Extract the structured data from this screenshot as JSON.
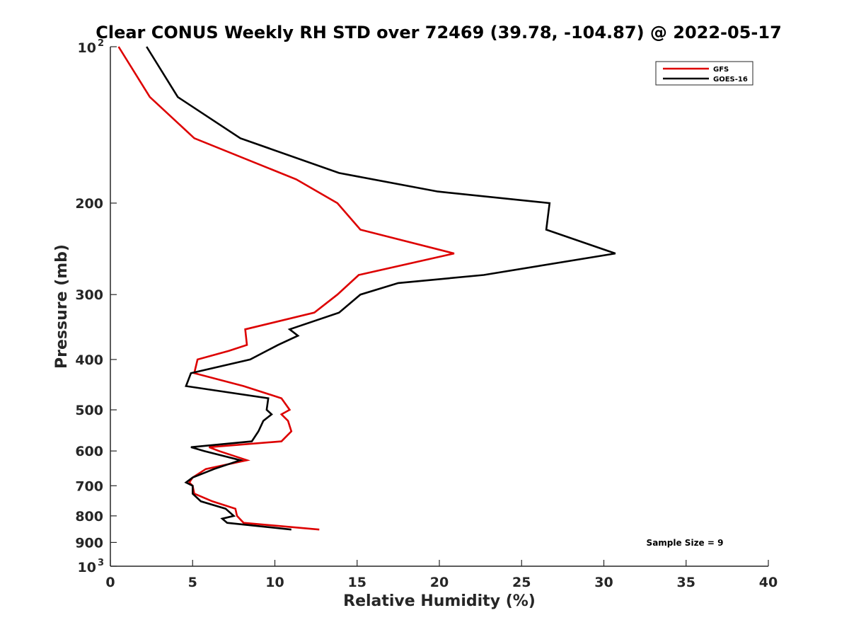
{
  "chart_data": {
    "type": "line",
    "title": "Clear CONUS Weekly RH STD over 72469 (39.78, -104.87) @ 2022-05-17",
    "xlabel": "Relative Humidity (%)",
    "ylabel": "Pressure (mb)",
    "xlim": [
      0,
      40
    ],
    "ylim": [
      100,
      1000
    ],
    "y_scale": "log",
    "y_reversed": true,
    "x_ticks": [
      "0",
      "5",
      "10",
      "15",
      "20",
      "25",
      "30",
      "35",
      "40"
    ],
    "y_ticks": [
      {
        "value": 100,
        "base": "10",
        "exp": "2"
      },
      {
        "value": 200,
        "label": "200"
      },
      {
        "value": 300,
        "label": "300"
      },
      {
        "value": 400,
        "label": "400"
      },
      {
        "value": 500,
        "label": "500"
      },
      {
        "value": 600,
        "label": "600"
      },
      {
        "value": 700,
        "label": "700"
      },
      {
        "value": 800,
        "label": "800"
      },
      {
        "value": 900,
        "label": "900"
      },
      {
        "value": 1000,
        "base": "10",
        "exp": "3"
      }
    ],
    "grid": false,
    "legend_position": "top-right",
    "annotation": "Sample Size = 9",
    "series": [
      {
        "name": "GFS",
        "color": "#dd0000",
        "points": [
          [
            0.5,
            100
          ],
          [
            2.4,
            125
          ],
          [
            5.1,
            150
          ],
          [
            11.3,
            180
          ],
          [
            13.8,
            200
          ],
          [
            15.2,
            225
          ],
          [
            20.9,
            250
          ],
          [
            15.1,
            275
          ],
          [
            13.8,
            300
          ],
          [
            12.4,
            325
          ],
          [
            8.2,
            350
          ],
          [
            8.3,
            375
          ],
          [
            7.2,
            385
          ],
          [
            5.3,
            400
          ],
          [
            5.1,
            425
          ],
          [
            8.1,
            450
          ],
          [
            10.4,
            475
          ],
          [
            10.9,
            500
          ],
          [
            10.4,
            510
          ],
          [
            10.8,
            525
          ],
          [
            11.0,
            550
          ],
          [
            10.4,
            575
          ],
          [
            6.0,
            590
          ],
          [
            6.6,
            600
          ],
          [
            8.3,
            625
          ],
          [
            5.8,
            650
          ],
          [
            5.0,
            675
          ],
          [
            4.8,
            690
          ],
          [
            5.0,
            700
          ],
          [
            5.1,
            725
          ],
          [
            6.2,
            750
          ],
          [
            7.6,
            775
          ],
          [
            7.7,
            800
          ],
          [
            8.1,
            825
          ],
          [
            12.7,
            850
          ]
        ]
      },
      {
        "name": "GOES-16",
        "color": "#000000",
        "points": [
          [
            2.2,
            100
          ],
          [
            4.1,
            125
          ],
          [
            7.9,
            150
          ],
          [
            13.9,
            175
          ],
          [
            19.9,
            190
          ],
          [
            26.7,
            200
          ],
          [
            26.5,
            225
          ],
          [
            30.7,
            250
          ],
          [
            22.7,
            275
          ],
          [
            17.5,
            285
          ],
          [
            15.2,
            300
          ],
          [
            13.9,
            325
          ],
          [
            10.9,
            350
          ],
          [
            11.4,
            360
          ],
          [
            10.2,
            375
          ],
          [
            8.5,
            400
          ],
          [
            4.9,
            425
          ],
          [
            4.6,
            450
          ],
          [
            9.6,
            475
          ],
          [
            9.5,
            500
          ],
          [
            9.8,
            510
          ],
          [
            9.3,
            525
          ],
          [
            9.0,
            550
          ],
          [
            8.6,
            575
          ],
          [
            4.9,
            590
          ],
          [
            5.7,
            600
          ],
          [
            7.9,
            625
          ],
          [
            6.3,
            650
          ],
          [
            5.0,
            675
          ],
          [
            4.6,
            690
          ],
          [
            5.0,
            700
          ],
          [
            5.0,
            725
          ],
          [
            5.5,
            750
          ],
          [
            7.0,
            775
          ],
          [
            7.5,
            800
          ],
          [
            6.8,
            810
          ],
          [
            7.1,
            825
          ],
          [
            11.0,
            850
          ]
        ]
      }
    ]
  }
}
